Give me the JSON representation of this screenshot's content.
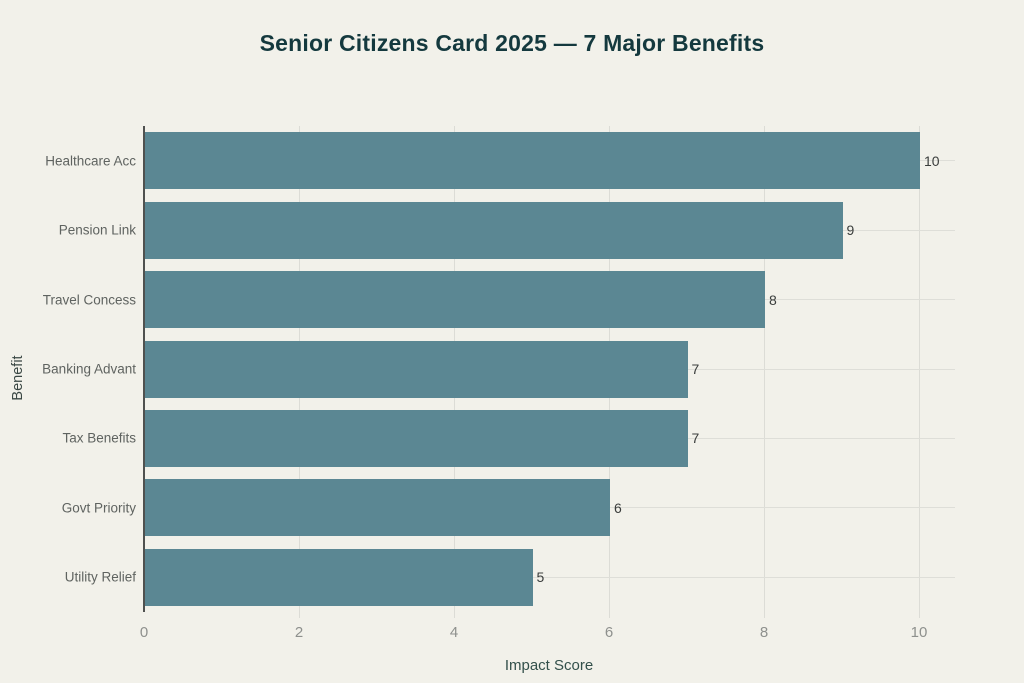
{
  "title": "Senior Citizens Card 2025 — 7 Major Benefits",
  "chart_data": {
    "type": "bar",
    "orientation": "horizontal",
    "title": "Senior Citizens Card 2025 — 7 Major Benefits",
    "categories": [
      "Healthcare Acc",
      "Pension Link",
      "Travel Concess",
      "Banking Advant",
      "Tax Benefits",
      "Govt Priority",
      "Utility Relief"
    ],
    "values": [
      10,
      9,
      8,
      7,
      7,
      6,
      5
    ],
    "value_labels": [
      "10",
      "9",
      "8",
      "7",
      "7",
      "6",
      "5"
    ],
    "xlabel": "Impact Score",
    "ylabel": "Benefit",
    "xlim": [
      0,
      10.5
    ],
    "x_ticks": [
      0,
      2,
      4,
      6,
      8,
      10
    ],
    "grid": true,
    "legend": "none",
    "bar_color": "#5b8793",
    "background_color": "#f2f1ea",
    "title_color": "#14393e"
  }
}
